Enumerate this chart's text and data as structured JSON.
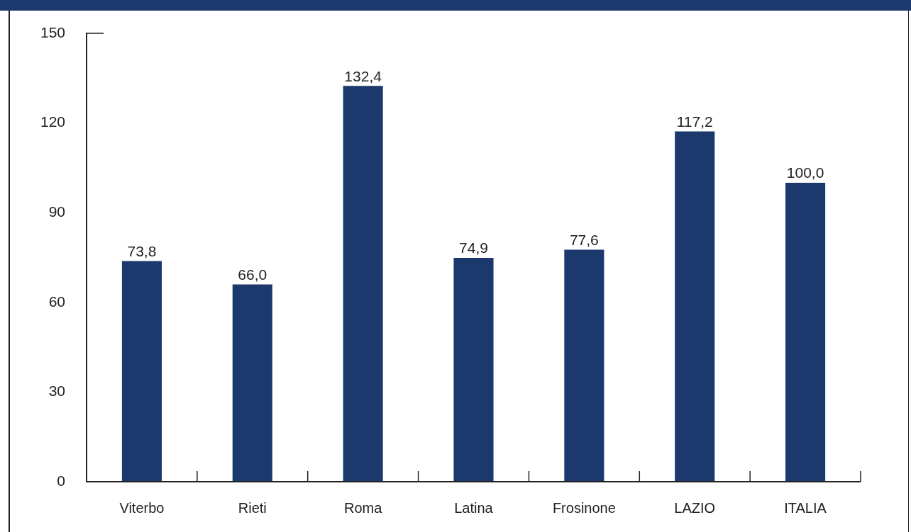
{
  "chart_data": {
    "type": "bar",
    "categories": [
      "Viterbo",
      "Rieti",
      "Roma",
      "Latina",
      "Frosinone",
      "LAZIO",
      "ITALIA"
    ],
    "values": [
      73.8,
      66.0,
      132.4,
      74.9,
      77.6,
      117.2,
      100.0
    ],
    "value_labels": [
      "73,8",
      "66,0",
      "132,4",
      "74,9",
      "77,6",
      "117,2",
      "100,0"
    ],
    "color": "#1c396d",
    "ylim": [
      0,
      150
    ],
    "yticks": [
      0,
      30,
      60,
      90,
      120,
      150
    ],
    "grid": false,
    "legend": false
  }
}
